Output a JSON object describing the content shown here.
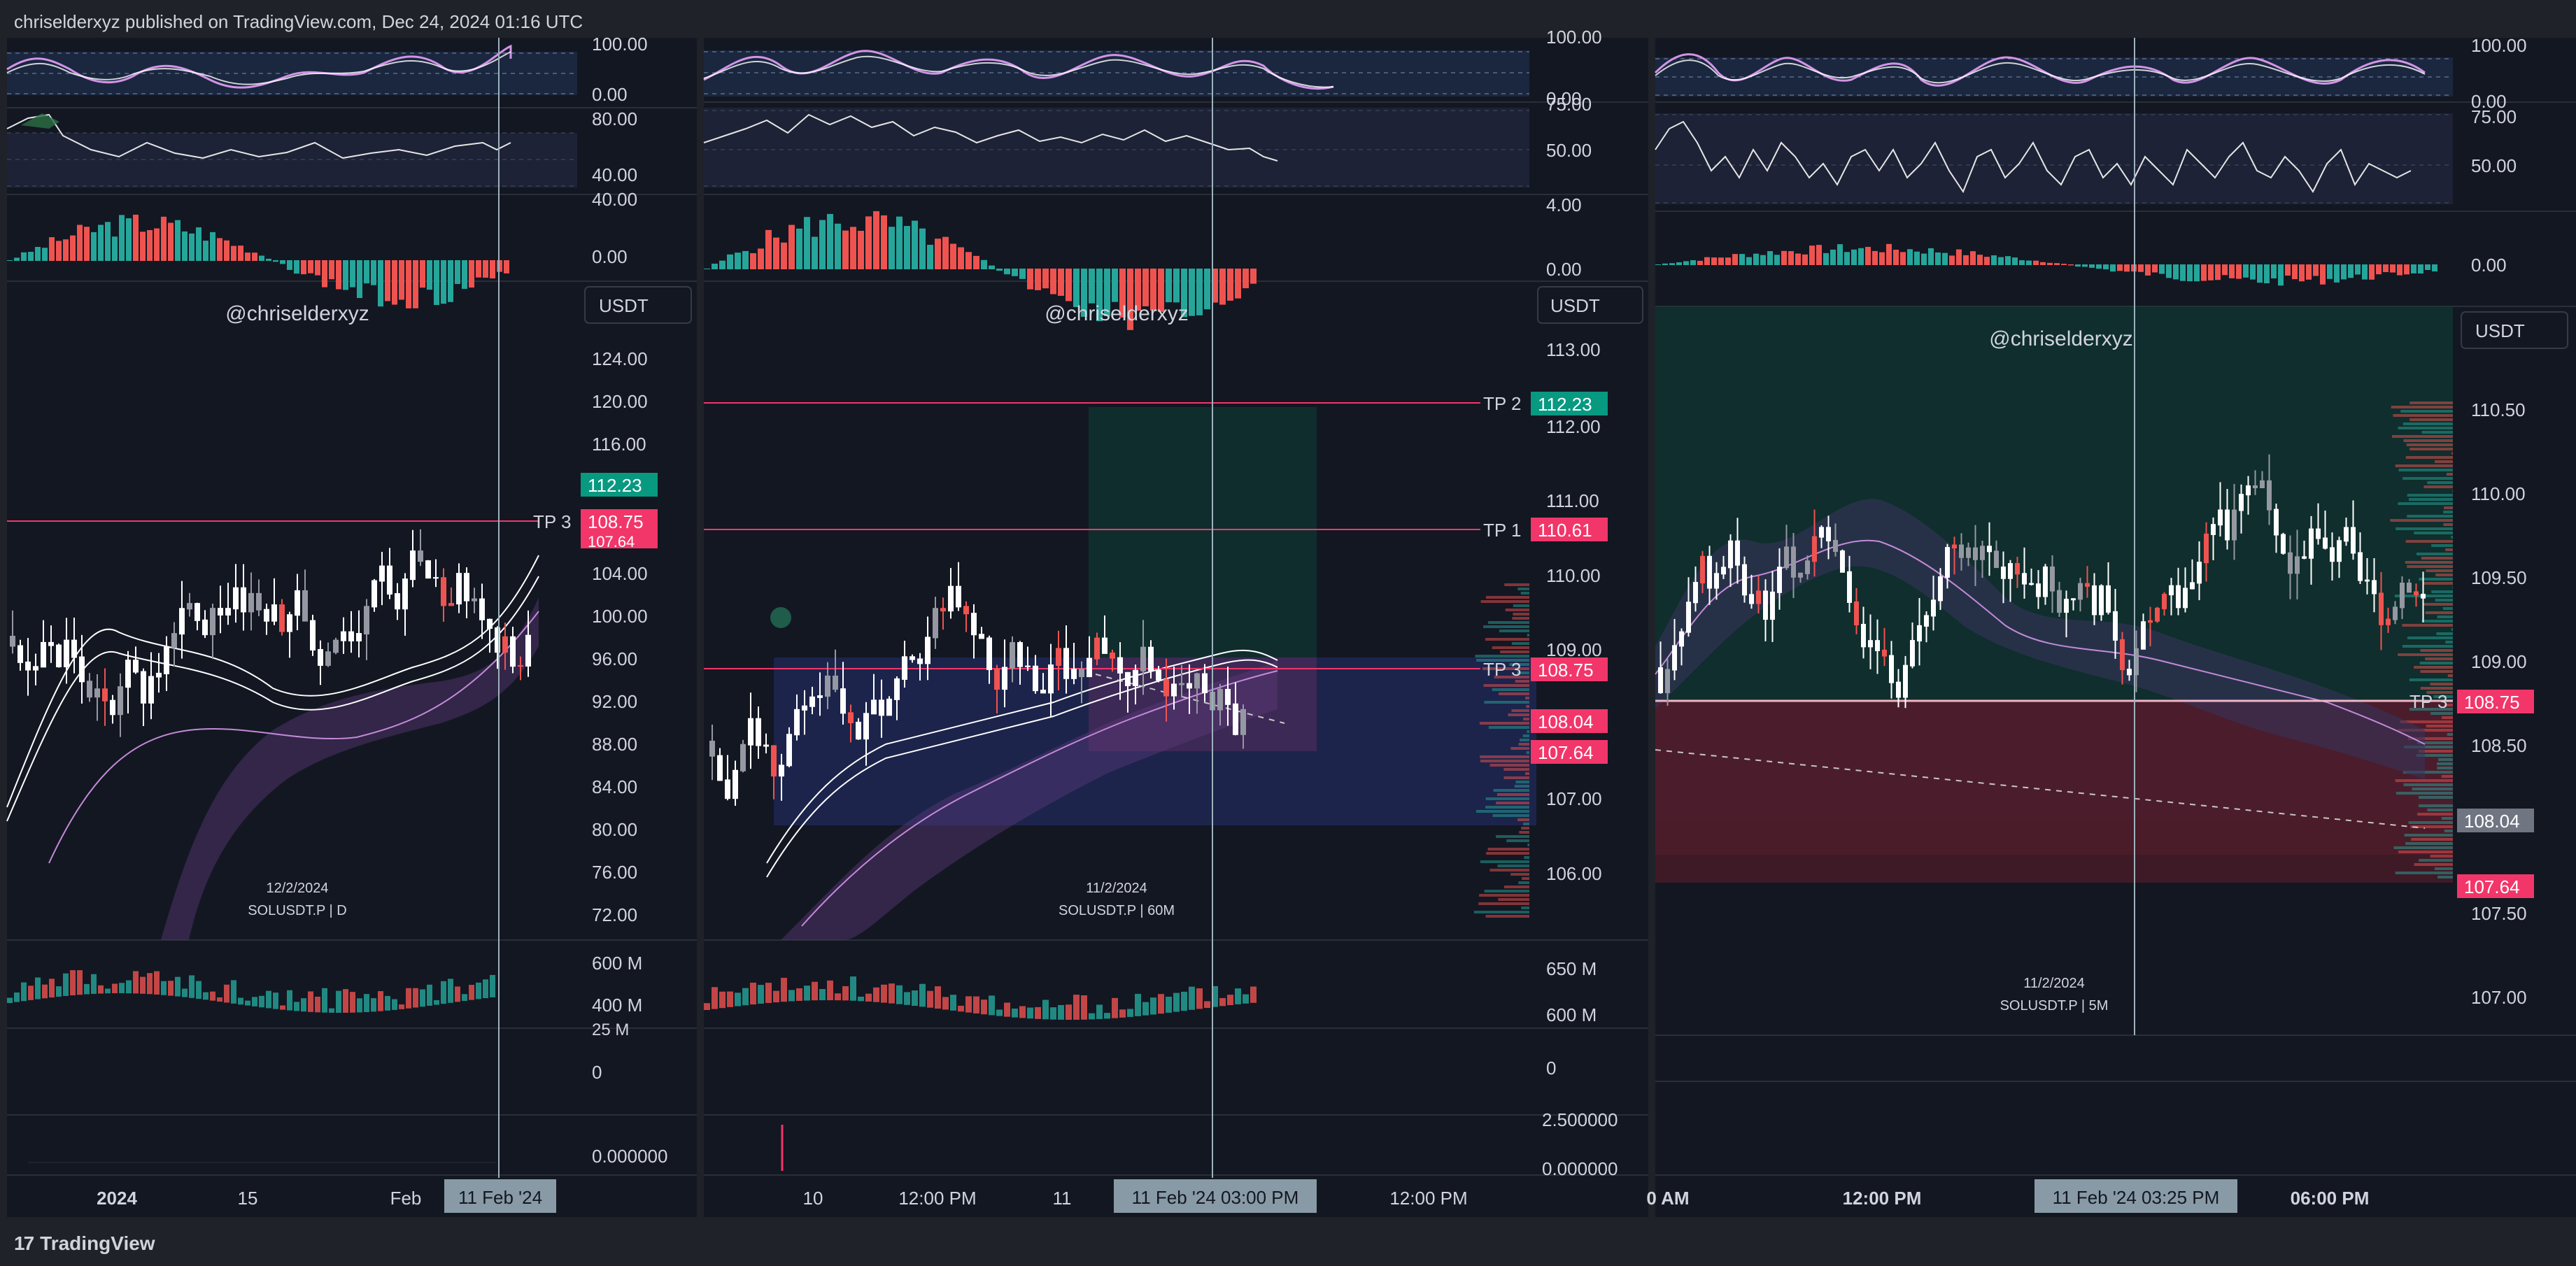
{
  "header": {
    "published_text": "chriselderxyz published on TradingView.com, Dec 24, 2024 01:16 UTC"
  },
  "footer": {
    "brand": "TradingView",
    "brand_mark": "17"
  },
  "panels": [
    {
      "id": "daily",
      "watermark": "@chriselderxyz",
      "currency": "USDT",
      "date_label": "12/2/2024",
      "symbol_label": "SOLUSDT.P | D",
      "rsi_axis": [
        "100.00",
        "0.00"
      ],
      "stoch_axis": [
        "80.00",
        "40.00"
      ],
      "macd_axis": [
        "40.00",
        "0.00"
      ],
      "price_axis": [
        "124.00",
        "120.00",
        "116.00",
        "104.00",
        "100.00",
        "96.00",
        "92.00",
        "88.00",
        "84.00",
        "80.00",
        "76.00",
        "72.00"
      ],
      "price_badges": [
        {
          "text": "112.23",
          "color": "#089981"
        },
        {
          "text": "108.75",
          "color": "#f23669"
        },
        {
          "text": "107.64",
          "color": "#f23669"
        }
      ],
      "tp_labels": [
        {
          "text": "TP 3"
        }
      ],
      "volume_axis": [
        "600 M",
        "400 M"
      ],
      "ind2_axis": [
        "25 M",
        "0"
      ],
      "ind3_axis": [
        "0.000000"
      ],
      "time_axis": [
        "2024",
        "15",
        "Feb"
      ],
      "crosshair_time": "11 Feb '24"
    },
    {
      "id": "hourly",
      "watermark": "@chriselderxyz",
      "currency": "USDT",
      "date_label": "11/2/2024",
      "symbol_label": "SOLUSDT.P | 60M",
      "rsi_axis": [
        "100.00",
        "0.00"
      ],
      "stoch_axis": [
        "75.00",
        "50.00"
      ],
      "macd_axis": [
        "4.00",
        "0.00"
      ],
      "price_axis": [
        "113.00",
        "112.00",
        "111.00",
        "110.00",
        "109.00",
        "107.00",
        "106.00"
      ],
      "price_badges": [
        {
          "text": "112.23",
          "color": "#089981"
        },
        {
          "text": "110.61",
          "color": "#f23669"
        },
        {
          "text": "108.75",
          "color": "#f23669"
        },
        {
          "text": "108.04",
          "color": "#f23669"
        },
        {
          "text": "107.64",
          "color": "#f23669"
        }
      ],
      "tp_labels": [
        {
          "text": "TP 2"
        },
        {
          "text": "TP 1"
        },
        {
          "text": "TP 3"
        }
      ],
      "volume_axis": [
        "650 M",
        "600 M"
      ],
      "ind2_axis": [
        "0"
      ],
      "ind3_axis": [
        "2.500000",
        "0.000000"
      ],
      "time_axis": [
        "10",
        "12:00 PM",
        "11",
        "12:00 PM"
      ],
      "crosshair_time": "11 Feb '24 03:00 PM"
    },
    {
      "id": "five_min",
      "watermark": "@chriselderxyz",
      "currency": "USDT",
      "date_label": "11/2/2024",
      "symbol_label": "SOLUSDT.P | 5M",
      "rsi_axis": [
        "100.00",
        "0.00"
      ],
      "stoch_axis": [
        "75.00",
        "50.00"
      ],
      "macd_axis": [
        "0.00"
      ],
      "price_axis": [
        "110.50",
        "110.00",
        "109.50",
        "109.00",
        "108.50",
        "107.50",
        "107.00"
      ],
      "price_badges": [
        {
          "text": "108.75",
          "color": "#f23669"
        },
        {
          "text": "108.04",
          "color": "#707582"
        },
        {
          "text": "107.64",
          "color": "#f23669"
        }
      ],
      "tp_labels": [
        {
          "text": "TP 3"
        }
      ],
      "time_axis": [
        "0 AM",
        "12:00 PM",
        "06:00 PM"
      ],
      "crosshair_time": "11 Feb '24 03:25 PM"
    }
  ]
}
